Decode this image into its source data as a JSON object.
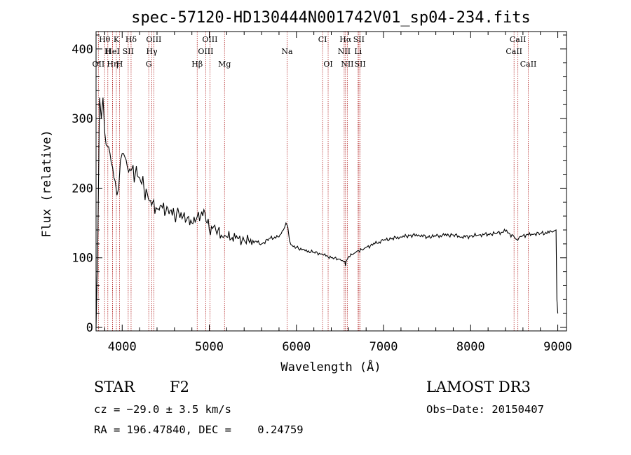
{
  "chart_data": {
    "type": "line",
    "title": "spec-57120-HD130444N001742V01_sp04-234.fits",
    "xlabel": "Wavelength (Å)",
    "ylabel": "Flux (relative)",
    "xlim": [
      3700,
      9100
    ],
    "ylim": [
      -5,
      425
    ],
    "xticks": [
      4000,
      5000,
      6000,
      7000,
      8000,
      9000
    ],
    "yticks": [
      0,
      100,
      200,
      300,
      400
    ],
    "grid": false,
    "series": [
      {
        "name": "flux",
        "x": [
          3700,
          3720,
          3740,
          3760,
          3780,
          3800,
          3830,
          3860,
          3890,
          3920,
          3940,
          3960,
          3980,
          4000,
          4030,
          4060,
          4100,
          4150,
          4200,
          4250,
          4300,
          4350,
          4400,
          4450,
          4500,
          4550,
          4600,
          4650,
          4700,
          4750,
          4800,
          4850,
          4900,
          4950,
          5000,
          5050,
          5100,
          5150,
          5200,
          5300,
          5400,
          5500,
          5600,
          5700,
          5800,
          5850,
          5880,
          5900,
          5920,
          5950,
          6000,
          6100,
          6200,
          6300,
          6400,
          6500,
          6530,
          6555,
          6563,
          6570,
          6600,
          6650,
          6700,
          6750,
          6800,
          6900,
          7000,
          7100,
          7200,
          7300,
          7400,
          7500,
          7600,
          7700,
          7800,
          7900,
          8000,
          8100,
          8200,
          8300,
          8400,
          8500,
          8540,
          8560,
          8600,
          8700,
          8800,
          8900,
          8950,
          8980,
          8990,
          9000
        ],
        "y": [
          0,
          125,
          330,
          300,
          330,
          280,
          260,
          250,
          230,
          210,
          190,
          200,
          240,
          250,
          245,
          230,
          225,
          220,
          215,
          200,
          185,
          180,
          170,
          175,
          165,
          168,
          160,
          165,
          160,
          158,
          150,
          155,
          160,
          165,
          140,
          145,
          140,
          130,
          130,
          128,
          125,
          125,
          120,
          128,
          130,
          140,
          150,
          145,
          125,
          118,
          115,
          110,
          108,
          105,
          100,
          98,
          96,
          95,
          88,
          95,
          102,
          105,
          110,
          112,
          115,
          120,
          125,
          128,
          130,
          132,
          133,
          130,
          131,
          132,
          133,
          130,
          131,
          133,
          134,
          135,
          138,
          130,
          125,
          130,
          132,
          134,
          135,
          136,
          138,
          140,
          40,
          20
        ]
      }
    ],
    "spectral_lines": [
      {
        "label": "Hθ",
        "wavelength": 3798,
        "row": 1
      },
      {
        "label": "K",
        "wavelength": 3933,
        "row": 1
      },
      {
        "label": "Hδ",
        "wavelength": 4102,
        "row": 1
      },
      {
        "label": "OIII",
        "wavelength": 4363,
        "row": 1
      },
      {
        "label": "OIII",
        "wavelength": 5007,
        "row": 1
      },
      {
        "label": "CI",
        "wavelength": 6300,
        "row": 1
      },
      {
        "label": "Hα",
        "wavelength": 6563,
        "row": 1
      },
      {
        "label": "SII",
        "wavelength": 6717,
        "row": 1
      },
      {
        "label": "CaII",
        "wavelength": 8542,
        "row": 1
      },
      {
        "label": "H",
        "wavelength": 3835,
        "row": 2
      },
      {
        "label": "HeI",
        "wavelength": 3889,
        "row": 2
      },
      {
        "label": "SII",
        "wavelength": 4069,
        "row": 2
      },
      {
        "label": "Hγ",
        "wavelength": 4340,
        "row": 2
      },
      {
        "label": "OIII",
        "wavelength": 4959,
        "row": 2
      },
      {
        "label": "Na",
        "wavelength": 5893,
        "row": 2
      },
      {
        "label": "NII",
        "wavelength": 6548,
        "row": 2
      },
      {
        "label": "Li",
        "wavelength": 6708,
        "row": 2
      },
      {
        "label": "CaII",
        "wavelength": 8498,
        "row": 2
      },
      {
        "label": "OII",
        "wavelength": 3727,
        "row": 3
      },
      {
        "label": "Hη",
        "wavelength": 3889,
        "row": 3
      },
      {
        "label": "H",
        "wavelength": 3970,
        "row": 3
      },
      {
        "label": "G",
        "wavelength": 4305,
        "row": 3
      },
      {
        "label": "Hβ",
        "wavelength": 4861,
        "row": 3
      },
      {
        "label": "Mg",
        "wavelength": 5175,
        "row": 3
      },
      {
        "label": "OI",
        "wavelength": 6364,
        "row": 3
      },
      {
        "label": "NII",
        "wavelength": 6584,
        "row": 3
      },
      {
        "label": "SII",
        "wavelength": 6731,
        "row": 3
      },
      {
        "label": "CaII",
        "wavelength": 8662,
        "row": 3
      }
    ]
  },
  "info": {
    "class_label": "STAR",
    "subclass": "F2",
    "survey": "LAMOST DR3",
    "cz": "cz = −29.0 ± 3.5 km/s",
    "obs_date": "Obs−Date: 20150407",
    "radec": "RA = 196.47840, DEC =    0.24759"
  },
  "colors": {
    "line_marker": "#b22222",
    "spectrum": "#000000",
    "axes": "#000000"
  }
}
